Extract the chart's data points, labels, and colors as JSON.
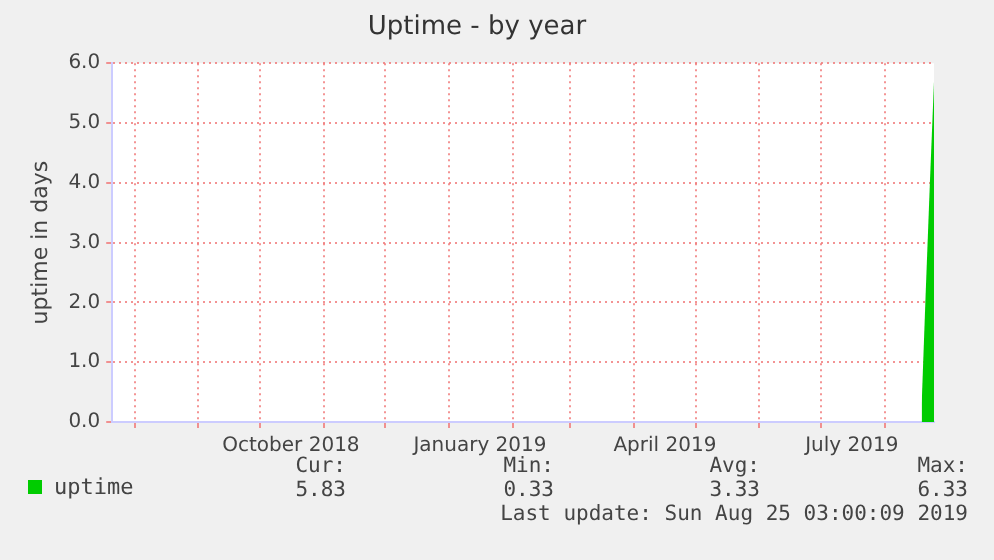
{
  "chart_data": {
    "type": "area",
    "title": "Uptime - by year",
    "ylabel": "uptime in days",
    "x": [
      "2019-08-19",
      "2019-08-21",
      "2019-08-23",
      "2019-08-25"
    ],
    "series": [
      {
        "name": "uptime",
        "color": "#00cc00",
        "values": [
          0.3,
          2.2,
          4.0,
          5.7
        ]
      }
    ],
    "xlim": [
      "2018-07-21",
      "2019-08-25"
    ],
    "xticks": [
      {
        "value": "2018-08-01",
        "label": null
      },
      {
        "value": "2018-09-01",
        "label": null
      },
      {
        "value": "2018-10-01",
        "label": null
      },
      {
        "value": "2018-10-16",
        "label": "October 2018"
      },
      {
        "value": "2018-11-01",
        "label": null
      },
      {
        "value": "2018-12-01",
        "label": null
      },
      {
        "value": "2019-01-01",
        "label": null
      },
      {
        "value": "2019-01-16",
        "label": "January 2019"
      },
      {
        "value": "2019-02-01",
        "label": null
      },
      {
        "value": "2019-03-01",
        "label": null
      },
      {
        "value": "2019-04-01",
        "label": null
      },
      {
        "value": "2019-04-16",
        "label": "April 2019"
      },
      {
        "value": "2019-05-01",
        "label": null
      },
      {
        "value": "2019-06-01",
        "label": null
      },
      {
        "value": "2019-07-01",
        "label": null
      },
      {
        "value": "2019-07-16",
        "label": "July 2019"
      },
      {
        "value": "2019-08-01",
        "label": null
      }
    ],
    "ylim": [
      0,
      6
    ],
    "yticks": [
      {
        "value": 0,
        "label": "0.0"
      },
      {
        "value": 1,
        "label": "1.0"
      },
      {
        "value": 2,
        "label": "2.0"
      },
      {
        "value": 3,
        "label": "3.0"
      },
      {
        "value": 4,
        "label": "4.0"
      },
      {
        "value": 5,
        "label": "5.0"
      },
      {
        "value": 6,
        "label": "6.0"
      }
    ],
    "grid": true,
    "legend": "bottom left",
    "annotations": [
      "Cur:",
      "Min:",
      "Avg:",
      "Max:",
      "5.83",
      "0.33",
      "3.33",
      "6.33",
      "Last update: Sun Aug 25 03:00:09 2019"
    ]
  }
}
